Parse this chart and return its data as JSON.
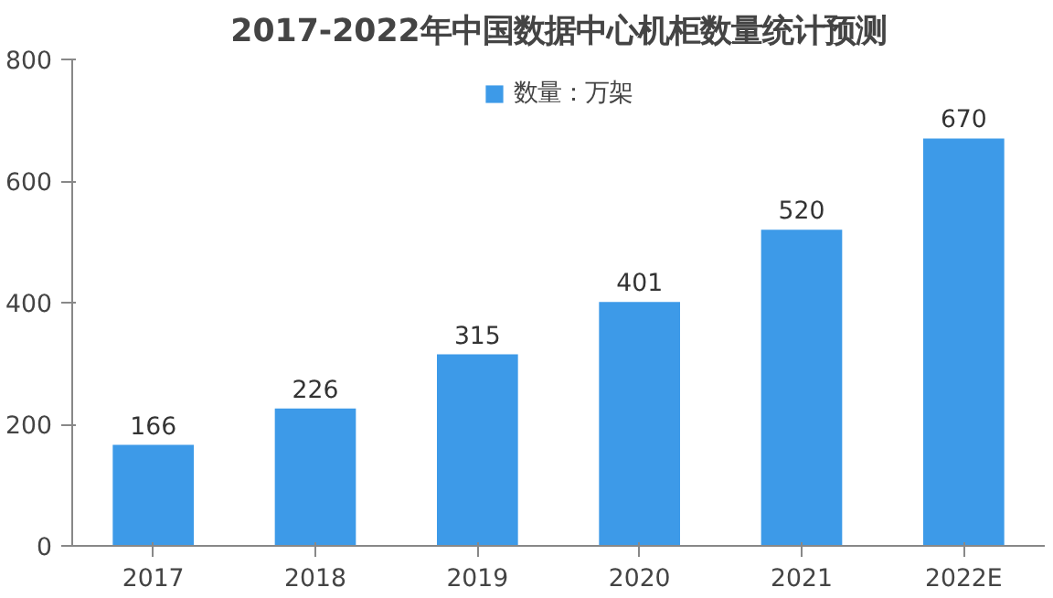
{
  "chart_data": {
    "type": "bar",
    "title": "2017-2022年中国数据中心机柜数量统计预测",
    "categories": [
      "2017",
      "2018",
      "2019",
      "2020",
      "2021",
      "2022E"
    ],
    "series": [
      {
        "name": "数量：万架",
        "color": "#3d9ae8",
        "values": [
          166,
          226,
          315,
          401,
          520,
          670
        ]
      }
    ],
    "ylim": [
      0,
      800
    ],
    "yticks": [
      0,
      200,
      400,
      600,
      800
    ],
    "grid": false,
    "legend": "top",
    "data_labels": true
  }
}
